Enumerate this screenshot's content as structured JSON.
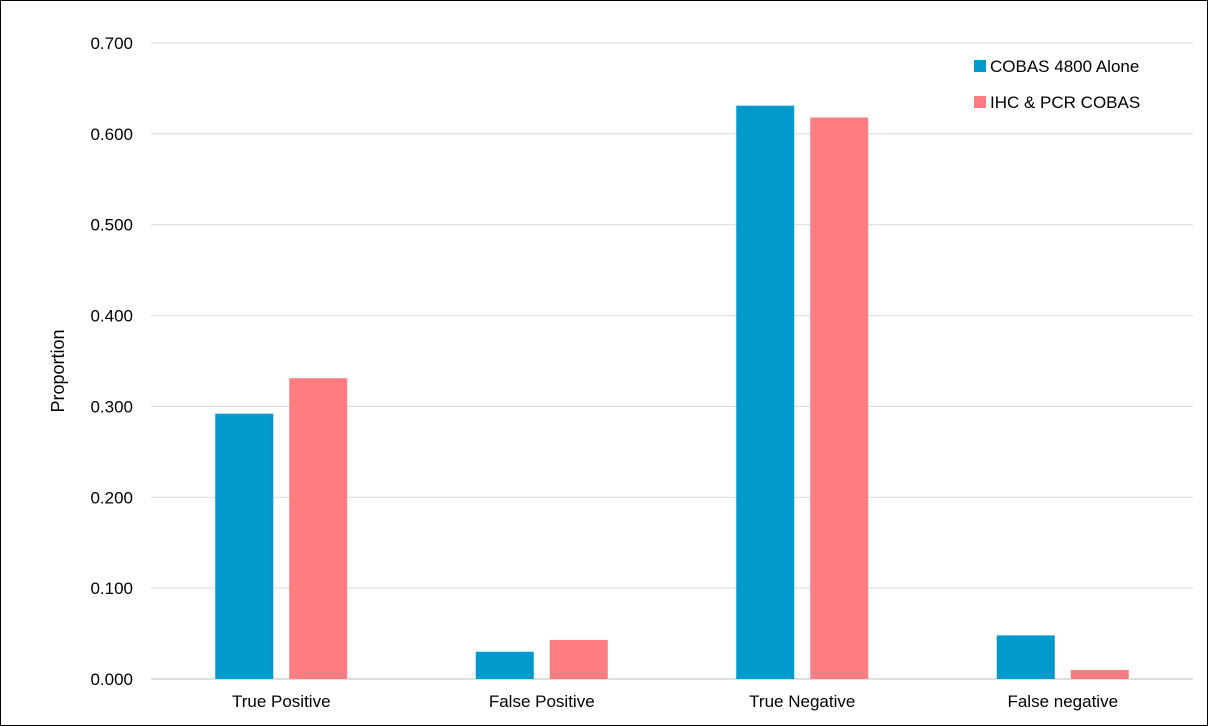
{
  "chart_data": {
    "type": "bar",
    "title": "",
    "xlabel": "",
    "ylabel": "Proportion",
    "ylim": [
      0,
      0.7
    ],
    "yticks": [
      "0.000",
      "0.100",
      "0.200",
      "0.300",
      "0.400",
      "0.500",
      "0.600",
      "0.700"
    ],
    "grid": true,
    "legend_position": "top-right",
    "categories": [
      "True Positive",
      "False Positive",
      "True Negative",
      "False negative"
    ],
    "series": [
      {
        "name": "COBAS 4800 Alone",
        "color": "#0099cc",
        "values": [
          0.292,
          0.03,
          0.631,
          0.048
        ]
      },
      {
        "name": "IHC & PCR COBAS",
        "color": "#ff7c80",
        "values": [
          0.331,
          0.043,
          0.618,
          0.01
        ]
      }
    ]
  }
}
